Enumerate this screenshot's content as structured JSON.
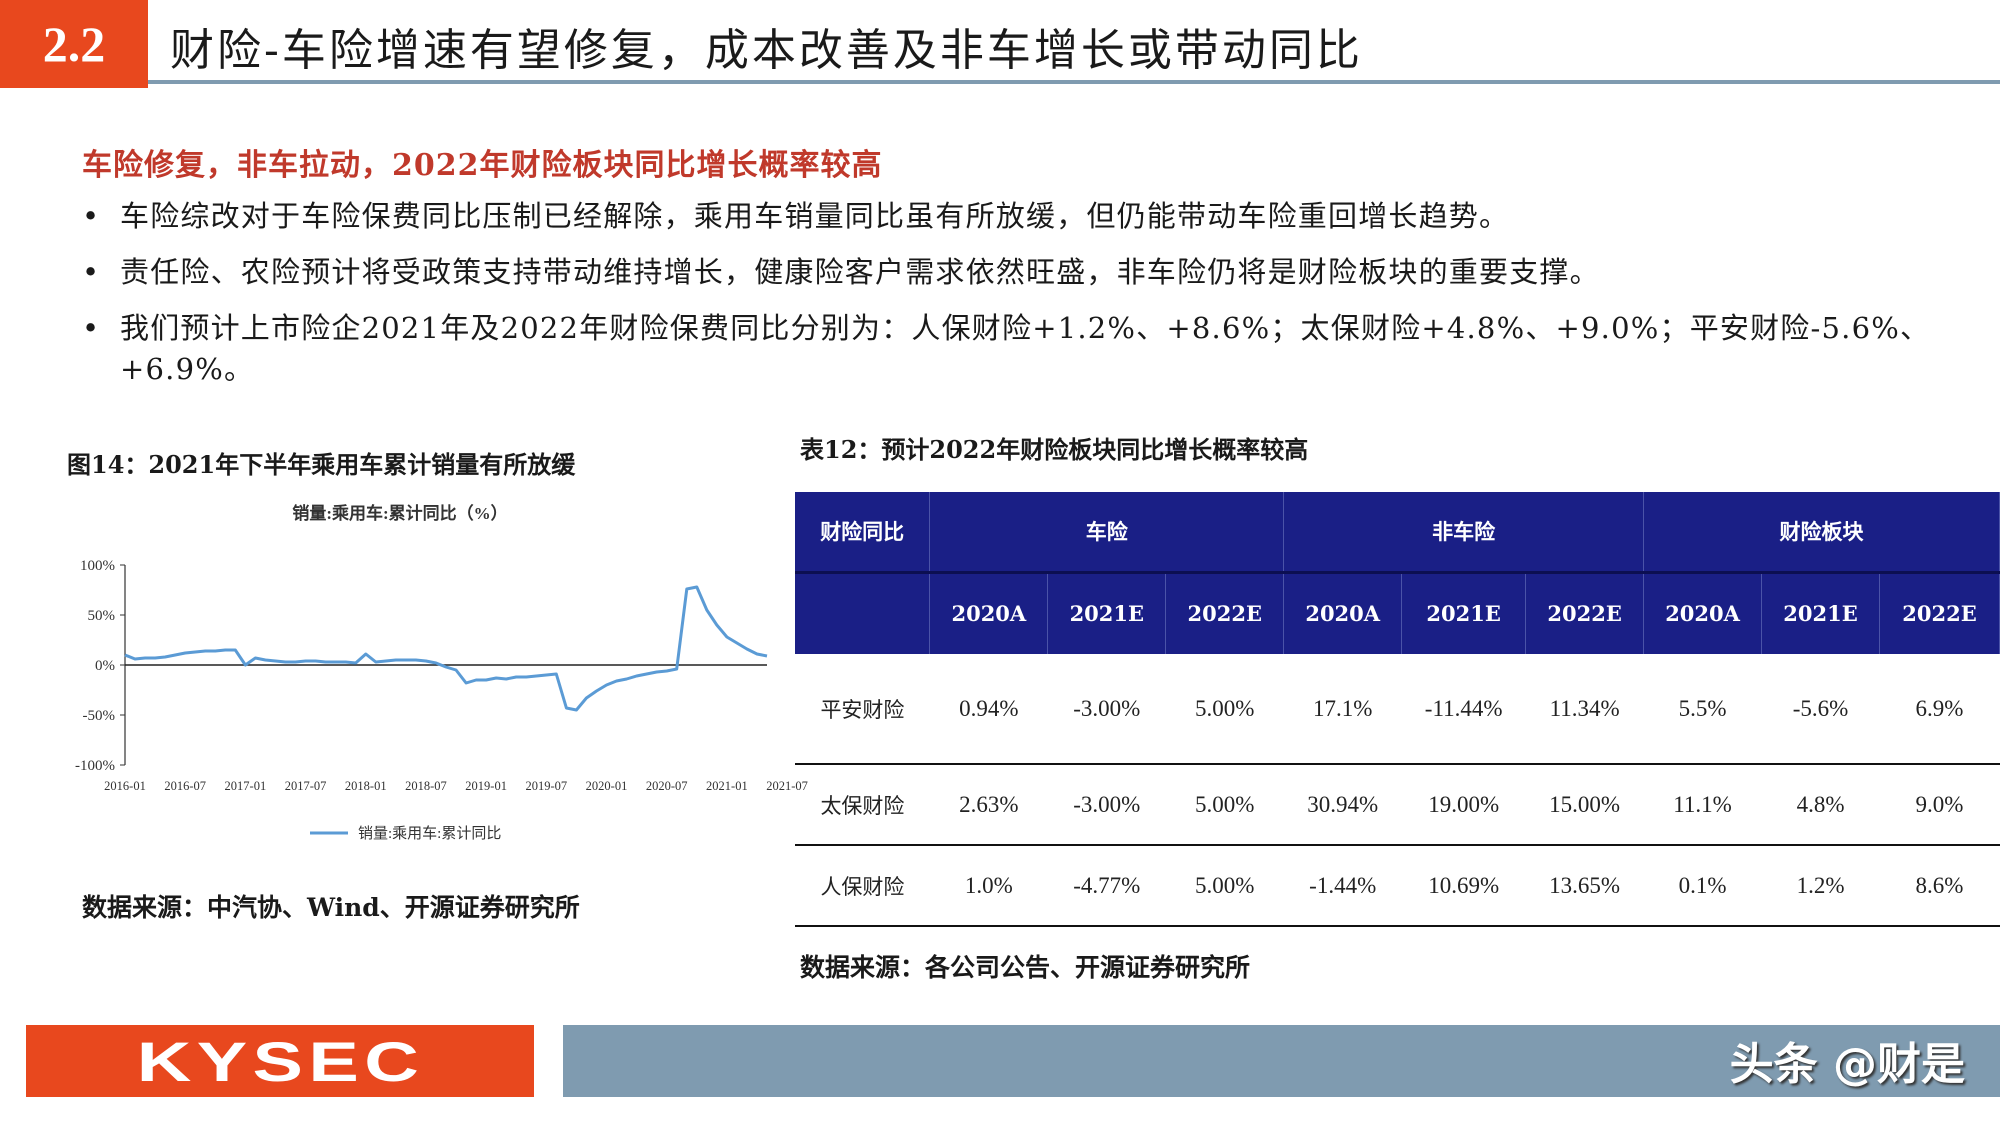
{
  "header": {
    "section_number": "2.2",
    "title": "财险-车险增速有望修复，成本改善及非车增长或带动同比"
  },
  "lead": "车险修复，非车拉动，2022年财险板块同比增长概率较高",
  "bullets": [
    "车险综改对于车险保费同比压制已经解除，乘用车销量同比虽有所放缓，但仍能带动车险重回增长趋势。",
    "责任险、农险预计将受政策支持带动维持增长，健康险客户需求依然旺盛，非车险仍将是财险板块的重要支撑。",
    "我们预计上市险企2021年及2022年财险保费同比分别为：人保财险+1.2%、+8.6%；太保财险+4.8%、+9.0%；平安财险-5.6%、+6.9%。"
  ],
  "figure": {
    "title": "图14：2021年下半年乘用车累计销量有所放缓",
    "source": "数据来源：中汽协、Wind、开源证券研究所"
  },
  "chart_data": {
    "type": "line",
    "title": "销量:乘用车:累计同比（%）",
    "ylim": [
      -100,
      100
    ],
    "yticks": [
      "100%",
      "50%",
      "0%",
      "-50%",
      "-100%"
    ],
    "ytick_values": [
      100,
      50,
      0,
      -50,
      -100
    ],
    "xticks": [
      "2016-01",
      "2016-07",
      "2017-01",
      "2017-07",
      "2018-01",
      "2018-07",
      "2019-01",
      "2019-07",
      "2020-01",
      "2020-07",
      "2021-01",
      "2021-07"
    ],
    "legend": "top",
    "series": [
      {
        "name": "销量:乘用车:累计同比",
        "color": "#5b9bd5",
        "values": [
          10,
          6,
          7,
          7,
          8,
          10,
          12,
          13,
          14,
          14,
          15,
          15,
          0,
          7,
          5,
          4,
          3,
          3,
          4,
          4,
          3,
          3,
          3,
          2,
          11,
          3,
          4,
          5,
          5,
          5,
          4,
          2,
          -2,
          -5,
          -18,
          -15,
          -15,
          -13,
          -14,
          -12,
          -12,
          -11,
          -10,
          -9,
          -43,
          -45,
          -33,
          -26,
          -20,
          -16,
          -14,
          -11,
          -9,
          -7,
          -6,
          -4,
          76,
          78,
          55,
          40,
          28,
          22,
          16,
          11,
          9
        ]
      }
    ]
  },
  "table": {
    "title": "表12：预计2022年财险板块同比增长概率较高",
    "corner_label": "财险同比",
    "groups": [
      "车险",
      "非车险",
      "财险板块"
    ],
    "years": [
      "2020A",
      "2021E",
      "2022E",
      "2020A",
      "2021E",
      "2022E",
      "2020A",
      "2021E",
      "2022E"
    ],
    "rows": [
      {
        "name": "平安财险",
        "cells": [
          "0.94%",
          "-3.00%",
          "5.00%",
          "17.1%",
          "-11.44%",
          "11.34%",
          "5.5%",
          "-5.6%",
          "6.9%"
        ]
      },
      {
        "name": "太保财险",
        "cells": [
          "2.63%",
          "-3.00%",
          "5.00%",
          "30.94%",
          "19.00%",
          "15.00%",
          "11.1%",
          "4.8%",
          "9.0%"
        ]
      },
      {
        "name": "人保财险",
        "cells": [
          "1.0%",
          "-4.77%",
          "5.00%",
          "-1.44%",
          "10.69%",
          "13.65%",
          "0.1%",
          "1.2%",
          "8.6%"
        ]
      }
    ],
    "source": "数据来源：各公司公告、开源证券研究所"
  },
  "footer": {
    "logo_text": "KYSEC",
    "watermark": "头条 @财是"
  },
  "colors": {
    "accent": "#e8481e",
    "table_header": "#1a1f86",
    "footer_bar": "#7f9bb0",
    "lead_text": "#c0392b"
  }
}
